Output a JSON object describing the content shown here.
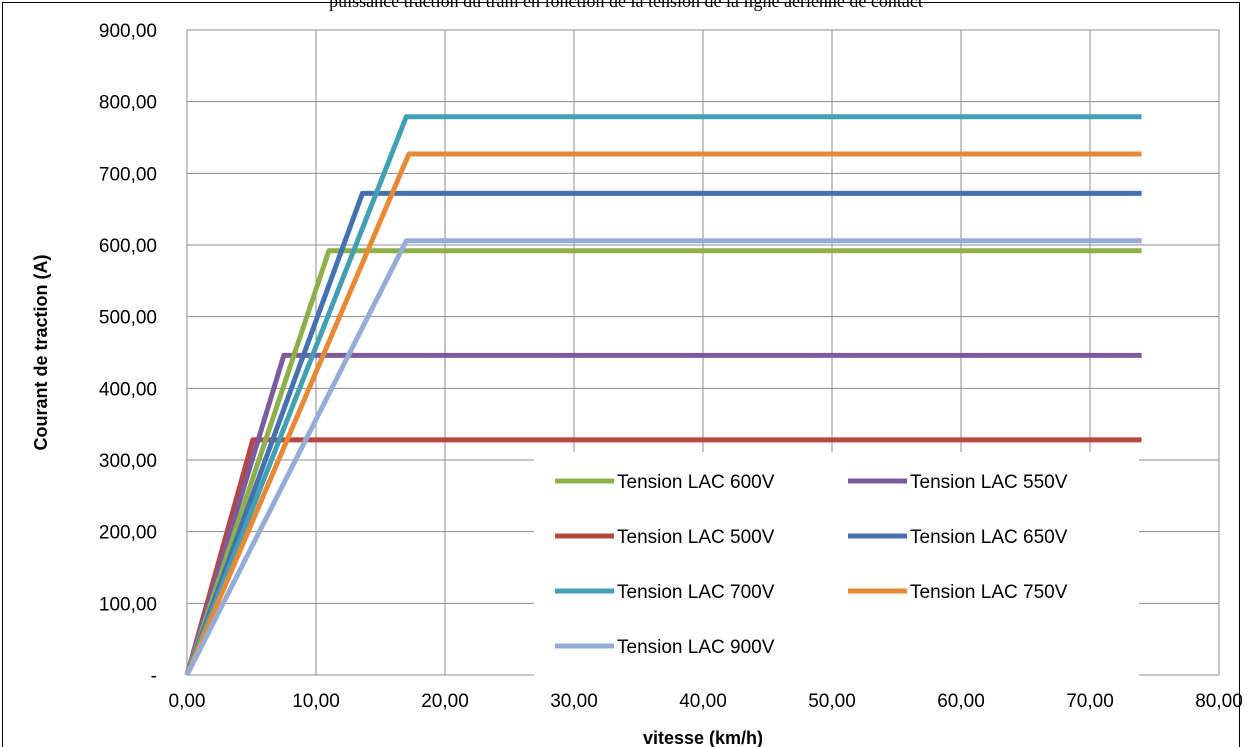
{
  "caption": "puissance traction du tram en fonction de la tension de la ligne aérienne de contact",
  "chart_data": {
    "type": "line",
    "title": "",
    "xlabel": "vitesse (km/h)",
    "ylabel": "Courant de traction (A)",
    "xlim": [
      0,
      80
    ],
    "ylim": [
      0,
      900
    ],
    "x_ticks": [
      "0,00",
      "10,00",
      "20,00",
      "30,00",
      "40,00",
      "50,00",
      "60,00",
      "70,00",
      "80,00"
    ],
    "y_ticks": [
      "-",
      "100,00",
      "200,00",
      "300,00",
      "400,00",
      "500,00",
      "600,00",
      "700,00",
      "800,00",
      "900,00"
    ],
    "grid": true,
    "legend_position": "bottom-right (inside plot)",
    "series": [
      {
        "name": "Tension LAC 600V",
        "color": "#8db04a",
        "x": [
          0,
          11.0,
          74.0
        ],
        "y": [
          0,
          592,
          592
        ]
      },
      {
        "name": "Tension LAC 550V",
        "color": "#7c5a9e",
        "x": [
          0,
          7.5,
          74.0
        ],
        "y": [
          0,
          446,
          446
        ]
      },
      {
        "name": "Tension LAC 500V",
        "color": "#b84643",
        "x": [
          0,
          5.1,
          74.0
        ],
        "y": [
          0,
          328,
          328
        ]
      },
      {
        "name": "Tension LAC 650V",
        "color": "#4472b0",
        "x": [
          0,
          13.6,
          74.0
        ],
        "y": [
          0,
          672,
          672
        ]
      },
      {
        "name": "Tension LAC 700V",
        "color": "#41a0b3",
        "x": [
          0,
          17.0,
          74.0
        ],
        "y": [
          0,
          779,
          779
        ]
      },
      {
        "name": "Tension LAC 750V",
        "color": "#e88936",
        "x": [
          0,
          17.2,
          74.0
        ],
        "y": [
          0,
          727,
          727
        ]
      },
      {
        "name": "Tension LAC 900V",
        "color": "#95acd6",
        "x": [
          0,
          17.0,
          74.0
        ],
        "y": [
          0,
          606,
          606
        ]
      }
    ]
  }
}
